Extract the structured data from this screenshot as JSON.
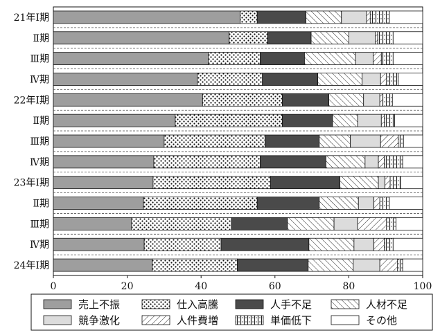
{
  "chart_data": {
    "type": "bar",
    "orientation": "horizontal",
    "stacked": true,
    "categories": [
      "21年Ⅰ期",
      "Ⅱ期",
      "Ⅲ期",
      "Ⅳ期",
      "22年Ⅰ期",
      "Ⅱ期",
      "Ⅲ期",
      "Ⅳ期",
      "23年Ⅰ期",
      "Ⅱ期",
      "Ⅲ期",
      "Ⅳ期",
      "24年Ⅰ期"
    ],
    "series": [
      {
        "name": "売上不振",
        "fill": "gray",
        "values": [
          50.6,
          47.6,
          42.0,
          39.0,
          40.4,
          33.0,
          30.0,
          27.2,
          27.0,
          24.4,
          21.2,
          24.6,
          26.8
        ]
      },
      {
        "name": "仕入高騰",
        "fill": "dots",
        "values": [
          4.6,
          10.4,
          14.0,
          17.6,
          21.6,
          29.0,
          27.3,
          28.8,
          31.8,
          30.8,
          27.0,
          20.8,
          23.0
        ]
      },
      {
        "name": "人手不足",
        "fill": "dark",
        "values": [
          13.2,
          11.8,
          12.0,
          15.0,
          12.6,
          13.6,
          14.7,
          17.8,
          18.8,
          16.8,
          15.2,
          23.8,
          19.2
        ]
      },
      {
        "name": "人材不足",
        "fill": "diag",
        "values": [
          9.6,
          10.2,
          13.8,
          12.0,
          9.4,
          6.8,
          8.4,
          10.6,
          10.4,
          10.6,
          12.6,
          12.2,
          12.2
        ]
      },
      {
        "name": "競争激化",
        "fill": "light",
        "values": [
          6.8,
          7.2,
          4.8,
          5.0,
          4.4,
          6.4,
          8.2,
          3.6,
          1.8,
          4.2,
          6.4,
          5.4,
          7.2
        ]
      },
      {
        "name": "人件費増",
        "fill": "back",
        "values": [
          1.0,
          0.6,
          2.2,
          1.6,
          0.8,
          0.8,
          4.8,
          1.6,
          1.4,
          1.6,
          7.8,
          2.8,
          4.8
        ]
      },
      {
        "name": "単価低下",
        "fill": "brick",
        "values": [
          5.2,
          4.2,
          3.2,
          3.2,
          2.6,
          2.8,
          1.4,
          5.0,
          2.8,
          2.6,
          2.6,
          2.4,
          1.4
        ]
      },
      {
        "name": "その他",
        "fill": "white",
        "values": [
          9.0,
          8.0,
          8.0,
          6.6,
          8.2,
          7.6,
          5.2,
          5.4,
          6.0,
          9.0,
          7.2,
          8.0,
          5.4
        ]
      }
    ],
    "xlim": [
      0,
      100
    ],
    "xticks": [
      0,
      20,
      40,
      60,
      80,
      100
    ],
    "legend_position": "bottom",
    "grid": false
  }
}
